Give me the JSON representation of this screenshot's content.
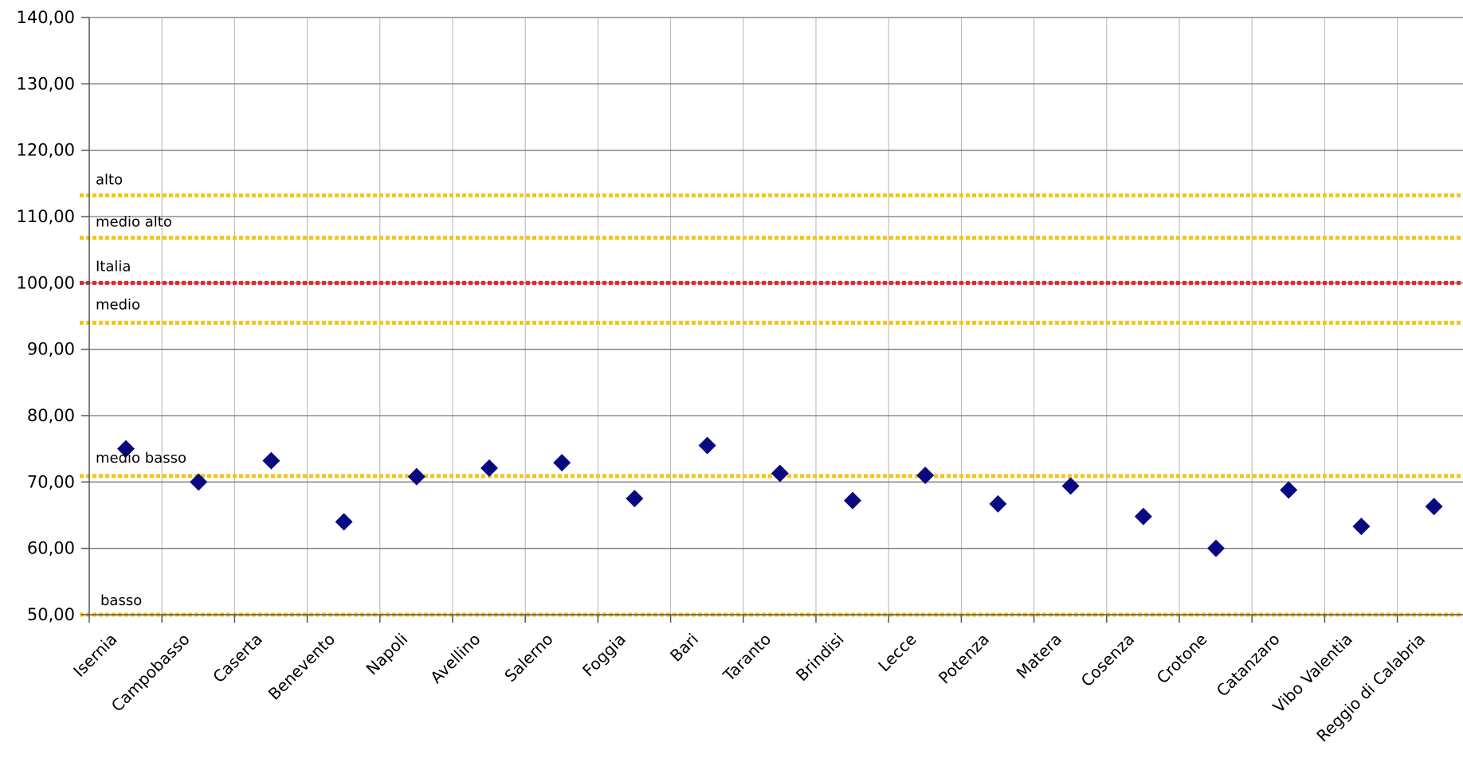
{
  "chart_data": {
    "type": "scatter",
    "categories": [
      "Isernia",
      "Campobasso",
      "Caserta",
      "Benevento",
      "Napoli",
      "Avellino",
      "Salerno",
      "Foggia",
      "Bari",
      "Taranto",
      "Brindisi",
      "Lecce",
      "Potenza",
      "Matera",
      "Cosenza",
      "Crotone",
      "Catanzaro",
      "Vibo Valentia",
      "Reggio di Calabria"
    ],
    "values": [
      75.0,
      70.0,
      73.2,
      64.0,
      70.8,
      72.1,
      72.9,
      67.5,
      75.5,
      71.3,
      67.2,
      71.0,
      66.7,
      69.4,
      64.8,
      60.0,
      68.8,
      63.3,
      66.3
    ],
    "ylim": [
      50,
      140
    ],
    "yticks": [
      "50,00",
      "60,00",
      "70,00",
      "80,00",
      "90,00",
      "100,00",
      "110,00",
      "120,00",
      "130,00",
      "140,00"
    ],
    "ytick_values": [
      50,
      60,
      70,
      80,
      90,
      100,
      110,
      120,
      130,
      140
    ],
    "reference_lines": [
      {
        "label": "alto",
        "value": 113.2,
        "color": "#f5c518"
      },
      {
        "label": "medio alto",
        "value": 106.8,
        "color": "#f5c518"
      },
      {
        "label": "Italia",
        "value": 100.0,
        "color": "#e8252b"
      },
      {
        "label": "medio",
        "value": 94.0,
        "color": "#f5c518"
      },
      {
        "label": "medio basso",
        "value": 70.9,
        "color": "#f5c518"
      },
      {
        "label": "basso",
        "value": 50.0,
        "color": "#f5c518"
      }
    ],
    "marker_color": "#0a0a80",
    "grid": true
  }
}
